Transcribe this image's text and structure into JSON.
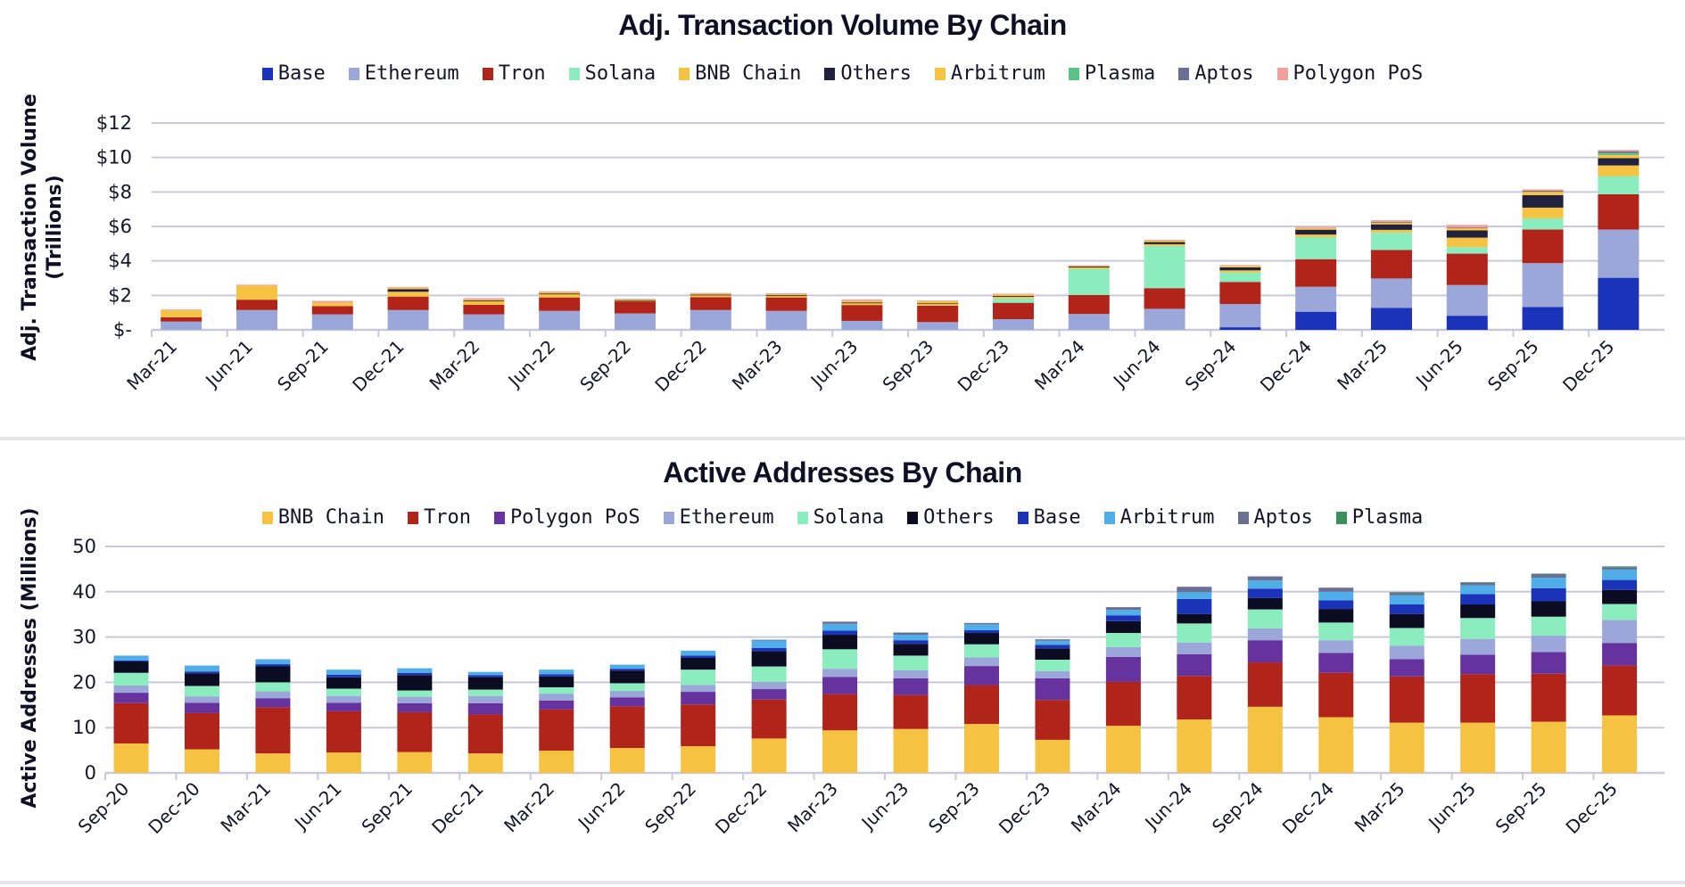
{
  "charts": [
    {
      "id": "volume",
      "title": "Adj. Transaction Volume By Chain",
      "ylabel_line1": "Adj. Transaction Volume",
      "ylabel_line2": "(Trillions)",
      "legend": [
        {
          "name": "Base",
          "color": "#1a33b8"
        },
        {
          "name": "Ethereum",
          "color": "#9ba6d9"
        },
        {
          "name": "Tron",
          "color": "#b0241a"
        },
        {
          "name": "Solana",
          "color": "#8bedbd"
        },
        {
          "name": "BNB Chain",
          "color": "#f5c242"
        },
        {
          "name": "Others",
          "color": "#20203f"
        },
        {
          "name": "Arbitrum",
          "color": "#f5c242"
        },
        {
          "name": "Plasma",
          "color": "#5bc385"
        },
        {
          "name": "Aptos",
          "color": "#6a6f96"
        },
        {
          "name": "Polygon PoS",
          "color": "#f2a09b"
        }
      ]
    },
    {
      "id": "addresses",
      "title": "Active Addresses By Chain",
      "ylabel_line1": "Active Addresses (Millions)",
      "ylabel_line2": "",
      "legend": [
        {
          "name": "BNB Chain",
          "color": "#f5c242"
        },
        {
          "name": "Tron",
          "color": "#b0241a"
        },
        {
          "name": "Polygon PoS",
          "color": "#66329e"
        },
        {
          "name": "Ethereum",
          "color": "#9ba6d9"
        },
        {
          "name": "Solana",
          "color": "#8bedbd"
        },
        {
          "name": "Others",
          "color": "#0b0b22"
        },
        {
          "name": "Base",
          "color": "#1a33b8"
        },
        {
          "name": "Arbitrum",
          "color": "#4fade8"
        },
        {
          "name": "Aptos",
          "color": "#6a6f96"
        },
        {
          "name": "Plasma",
          "color": "#3d8f5e"
        }
      ]
    }
  ],
  "chart_data": [
    {
      "type": "bar",
      "stacked": true,
      "title": "Adj. Transaction Volume By Chain",
      "xlabel": "",
      "ylabel": "Adj. Transaction Volume (Trillions)",
      "ylim": [
        0,
        12
      ],
      "yticks": [
        0,
        2,
        4,
        6,
        8,
        10,
        12
      ],
      "ytick_labels": [
        "$-",
        "$2",
        "$4",
        "$6",
        "$8",
        "$10",
        "$12"
      ],
      "grid": true,
      "legend_position": "top",
      "categories": [
        "Mar-21",
        "Jun-21",
        "Sep-21",
        "Dec-21",
        "Mar-22",
        "Jun-22",
        "Sep-22",
        "Dec-22",
        "Mar-23",
        "Jun-23",
        "Sep-23",
        "Dec-23",
        "Mar-24",
        "Jun-24",
        "Sep-24",
        "Dec-24",
        "Mar-25",
        "Jun-25",
        "Sep-25",
        "Dec-25"
      ],
      "series": [
        {
          "name": "Base",
          "values": [
            0,
            0,
            0,
            0,
            0,
            0,
            0,
            0,
            0,
            0,
            0,
            0,
            0,
            0,
            0.15,
            1.05,
            1.28,
            0.82,
            1.32,
            3.02
          ]
        },
        {
          "name": "Ethereum",
          "values": [
            0.48,
            1.15,
            0.9,
            1.15,
            0.9,
            1.1,
            0.95,
            1.15,
            1.1,
            0.52,
            0.45,
            0.62,
            0.92,
            1.22,
            1.35,
            1.45,
            1.7,
            1.78,
            2.55,
            2.8
          ]
        },
        {
          "name": "Tron",
          "values": [
            0.25,
            0.6,
            0.48,
            0.78,
            0.55,
            0.78,
            0.7,
            0.75,
            0.78,
            0.92,
            0.95,
            0.95,
            1.1,
            1.2,
            1.28,
            1.6,
            1.65,
            1.82,
            1.95,
            2.05
          ]
        },
        {
          "name": "Solana",
          "values": [
            0,
            0,
            0,
            0,
            0,
            0,
            0,
            0,
            0,
            0,
            0,
            0.25,
            1.52,
            2.45,
            0.55,
            1.28,
            1.02,
            0.38,
            0.65,
            1.05
          ]
        },
        {
          "name": "BNB Chain",
          "values": [
            0.38,
            0.8,
            0.15,
            0.28,
            0.2,
            0.18,
            0.05,
            0.12,
            0.08,
            0.1,
            0.12,
            0.1,
            0.08,
            0.1,
            0.12,
            0.15,
            0.15,
            0.55,
            0.62,
            0.62
          ]
        },
        {
          "name": "Others",
          "values": [
            0,
            0,
            0,
            0.15,
            0.05,
            0.05,
            0.02,
            0.02,
            0.05,
            0.05,
            0.02,
            0.05,
            0.05,
            0.12,
            0.18,
            0.28,
            0.32,
            0.42,
            0.72,
            0.42
          ]
        },
        {
          "name": "Arbitrum",
          "values": [
            0.02,
            0.02,
            0.05,
            0.08,
            0.06,
            0.08,
            0.05,
            0.05,
            0.06,
            0.08,
            0.12,
            0.08,
            0.06,
            0.08,
            0.08,
            0.1,
            0.12,
            0.15,
            0.2,
            0.18
          ]
        },
        {
          "name": "Plasma",
          "values": [
            0,
            0,
            0,
            0,
            0,
            0,
            0,
            0,
            0,
            0,
            0,
            0,
            0,
            0,
            0,
            0,
            0,
            0,
            0,
            0.12
          ]
        },
        {
          "name": "Aptos",
          "values": [
            0,
            0,
            0,
            0,
            0,
            0,
            0,
            0,
            0,
            0,
            0,
            0,
            0,
            0,
            0,
            0,
            0.02,
            0.02,
            0.06,
            0.1
          ]
        },
        {
          "name": "Polygon PoS",
          "values": [
            0.05,
            0.05,
            0.1,
            0.05,
            0.08,
            0.05,
            0.03,
            0.05,
            0.05,
            0.1,
            0.04,
            0.05,
            0.02,
            0.05,
            0.05,
            0.06,
            0.1,
            0.15,
            0.08,
            0.08
          ]
        }
      ]
    },
    {
      "type": "bar",
      "stacked": true,
      "title": "Active Addresses By Chain",
      "xlabel": "",
      "ylabel": "Active Addresses (Millions)",
      "ylim": [
        0,
        50
      ],
      "yticks": [
        0,
        10,
        20,
        30,
        40,
        50
      ],
      "ytick_labels": [
        "0",
        "10",
        "20",
        "30",
        "40",
        "50"
      ],
      "grid": true,
      "legend_position": "top",
      "categories": [
        "Sep-20",
        "Dec-20",
        "Mar-21",
        "Jun-21",
        "Sep-21",
        "Dec-21",
        "Mar-22",
        "Jun-22",
        "Sep-22",
        "Dec-22",
        "Mar-23",
        "Jun-23",
        "Sep-23",
        "Dec-23",
        "Mar-24",
        "Jun-24",
        "Sep-24",
        "Dec-24",
        "Mar-25",
        "Jun-25",
        "Sep-25",
        "Dec-25"
      ],
      "series": [
        {
          "name": "BNB Chain",
          "values": [
            6.5,
            5.2,
            4.3,
            4.5,
            4.6,
            4.3,
            4.9,
            5.5,
            5.9,
            7.6,
            9.4,
            9.7,
            10.8,
            7.3,
            10.4,
            11.8,
            14.6,
            12.3,
            11.1,
            11.1,
            11.3,
            12.7
          ]
        },
        {
          "name": "Tron",
          "values": [
            8.9,
            8.0,
            10.2,
            9.1,
            8.8,
            8.6,
            9.1,
            9.2,
            9.2,
            8.6,
            8.0,
            7.5,
            8.6,
            8.8,
            9.7,
            9.6,
            9.8,
            9.8,
            10.2,
            10.7,
            10.6,
            11.0
          ]
        },
        {
          "name": "Polygon PoS",
          "values": [
            2.3,
            2.3,
            2.0,
            1.9,
            2.0,
            2.5,
            2.0,
            2.0,
            2.8,
            2.3,
            3.8,
            3.7,
            4.2,
            4.8,
            5.5,
            4.8,
            4.9,
            4.4,
            3.8,
            4.3,
            4.8,
            5.0
          ]
        },
        {
          "name": "Ethereum",
          "values": [
            1.6,
            1.4,
            1.5,
            1.5,
            1.4,
            1.6,
            1.5,
            1.4,
            1.5,
            1.6,
            1.8,
            1.8,
            1.9,
            1.6,
            2.2,
            2.6,
            2.6,
            2.8,
            3.0,
            3.5,
            3.6,
            5.1
          ]
        },
        {
          "name": "Solana",
          "values": [
            2.8,
            2.3,
            2.0,
            1.6,
            1.4,
            1.4,
            1.4,
            1.7,
            3.4,
            3.4,
            4.3,
            3.2,
            2.9,
            2.5,
            3.1,
            4.2,
            4.2,
            3.9,
            3.9,
            4.6,
            4.2,
            3.5
          ]
        },
        {
          "name": "Others",
          "values": [
            2.5,
            2.8,
            3.6,
            2.5,
            3.4,
            2.8,
            2.4,
            2.8,
            2.6,
            3.4,
            3.2,
            2.6,
            2.5,
            2.5,
            2.6,
            2.1,
            2.5,
            3.0,
            3.1,
            3.0,
            3.4,
            3.1
          ]
        },
        {
          "name": "Base",
          "values": [
            0.2,
            0.4,
            0.4,
            0.6,
            0.5,
            0.4,
            0.5,
            0.4,
            0.5,
            0.7,
            0.9,
            0.8,
            0.6,
            0.8,
            1.3,
            3.3,
            2.1,
            1.9,
            2.1,
            2.3,
            2.9,
            2.2
          ]
        },
        {
          "name": "Arbitrum",
          "values": [
            1.1,
            1.3,
            1.1,
            1.1,
            1.0,
            0.7,
            1.0,
            0.9,
            1.1,
            1.7,
            1.5,
            1.2,
            1.3,
            0.9,
            1.2,
            1.5,
            1.8,
            1.9,
            2.0,
            1.9,
            2.3,
            2.3
          ]
        },
        {
          "name": "Aptos",
          "values": [
            0,
            0,
            0,
            0,
            0,
            0,
            0,
            0,
            0,
            0.1,
            0.5,
            0.5,
            0.3,
            0.3,
            0.6,
            1.2,
            0.9,
            0.9,
            0.6,
            0.6,
            0.7,
            0.5
          ]
        },
        {
          "name": "Plasma",
          "values": [
            0,
            0,
            0,
            0,
            0,
            0,
            0,
            0,
            0,
            0,
            0,
            0,
            0,
            0,
            0,
            0,
            0,
            0,
            0.1,
            0.1,
            0.2,
            0.2
          ]
        }
      ]
    }
  ]
}
